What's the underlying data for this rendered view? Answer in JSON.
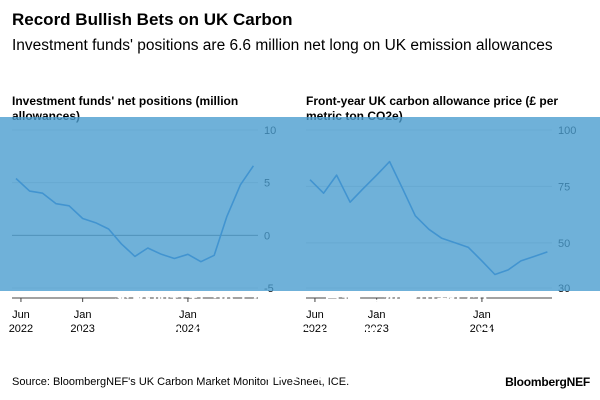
{
  "header": {
    "title": "Record Bullish Bets on UK Carbon",
    "subtitle": "Investment funds' positions are 6.6 million net long on UK emission allowances"
  },
  "footer": {
    "source": "Source: BloombergNEF's UK Carbon Market Monitor LiveSheet, ICE.",
    "brand": "BloombergNEF"
  },
  "overlay": {
    "line1": "买股加杠杆 30天299元，直播一次卖出超560",
    "line2": "！歌手汪峰上台卖课：“近百人的团队花了3个多月录",
    "line3": "月录制”"
  },
  "chart_data": [
    {
      "type": "line",
      "title": "Investment funds' net positions (million allowances)",
      "xlabel": "",
      "ylabel": "",
      "x_range": [
        "2022-05-01",
        "2024-08-31"
      ],
      "ylim": [
        -5,
        10
      ],
      "yticks": [
        10,
        5,
        0,
        -5
      ],
      "xticks": [
        {
          "date": "2022-06-01",
          "label": "Jun",
          "sublabel": "2022"
        },
        {
          "date": "2023-01-01",
          "label": "Jan",
          "sublabel": "2023"
        },
        {
          "date": "2024-01-01",
          "label": "Jan",
          "sublabel": "2024"
        }
      ],
      "color": "#1f6fd0",
      "series": [
        {
          "x": [
            "2022-05-15",
            "2022-07-01",
            "2022-08-15",
            "2022-10-01",
            "2022-11-15",
            "2023-01-01",
            "2023-02-15",
            "2023-04-01",
            "2023-05-15",
            "2023-07-01",
            "2023-08-15",
            "2023-10-01",
            "2023-11-15",
            "2024-01-01",
            "2024-02-15",
            "2024-04-01",
            "2024-05-15",
            "2024-07-01",
            "2024-08-15"
          ],
          "values": [
            5.4,
            4.2,
            4.0,
            3.0,
            2.8,
            1.6,
            1.2,
            0.6,
            -0.8,
            -2.0,
            -1.2,
            -1.8,
            -2.2,
            -1.8,
            -2.5,
            -1.9,
            1.8,
            4.8,
            6.6
          ]
        }
      ]
    },
    {
      "type": "line",
      "title": "Front-year UK carbon allowance price (£ per metric ton CO2e)",
      "xlabel": "",
      "ylabel": "",
      "x_range": [
        "2022-05-01",
        "2024-08-31"
      ],
      "ylim": [
        30,
        100
      ],
      "yticks": [
        100,
        75,
        50,
        30
      ],
      "xticks": [
        {
          "date": "2022-06-01",
          "label": "Jun",
          "sublabel": "2022"
        },
        {
          "date": "2023-01-01",
          "label": "Jan",
          "sublabel": "2023"
        },
        {
          "date": "2024-01-01",
          "label": "Jan",
          "sublabel": "2024"
        }
      ],
      "color": "#1f6fd0",
      "series": [
        {
          "x": [
            "2022-05-15",
            "2022-07-01",
            "2022-08-15",
            "2022-10-01",
            "2022-11-15",
            "2023-01-01",
            "2023-02-15",
            "2023-04-01",
            "2023-05-15",
            "2023-07-01",
            "2023-08-15",
            "2023-10-01",
            "2023-11-15",
            "2024-01-01",
            "2024-02-15",
            "2024-04-01",
            "2024-05-15",
            "2024-07-01",
            "2024-08-15"
          ],
          "values": [
            78,
            72,
            80,
            68,
            74,
            80,
            86,
            74,
            62,
            56,
            52,
            50,
            48,
            42,
            36,
            38,
            42,
            44,
            46
          ]
        }
      ]
    }
  ]
}
